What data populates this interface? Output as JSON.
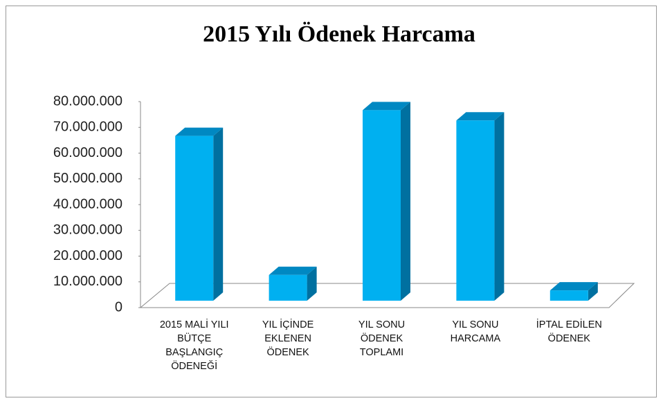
{
  "chart_data": {
    "type": "bar3d",
    "title": "2015 Yılı Ödenek Harcama",
    "categories": [
      "2015 MALİ YILI BÜTÇE BAŞLANGIÇ ÖDENEĞİ",
      "YIL İÇİNDE EKLENEN ÖDENEK",
      "YIL SONU ÖDENEK TOPLAMI",
      "YIL SONU HARCAMA",
      "İPTAL EDİLEN ÖDENEK"
    ],
    "values": [
      64000000,
      10000000,
      74000000,
      70000000,
      4000000
    ],
    "color": "#00b0f0",
    "ylim": [
      0,
      80000000
    ],
    "yticks": [
      0,
      {
        "value": 10000000,
        "label": "10.000.000"
      },
      {
        "value": 20000000,
        "label": "20.000.000"
      },
      {
        "value": 30000000,
        "label": "30.000.000"
      },
      {
        "value": 40000000,
        "label": "40.000.000"
      },
      {
        "value": 50000000,
        "label": "50.000.000"
      },
      {
        "value": 60000000,
        "label": "60.000.000"
      },
      {
        "value": 70000000,
        "label": "70.000.000"
      },
      {
        "value": 80000000,
        "label": "80.000.000"
      }
    ]
  }
}
